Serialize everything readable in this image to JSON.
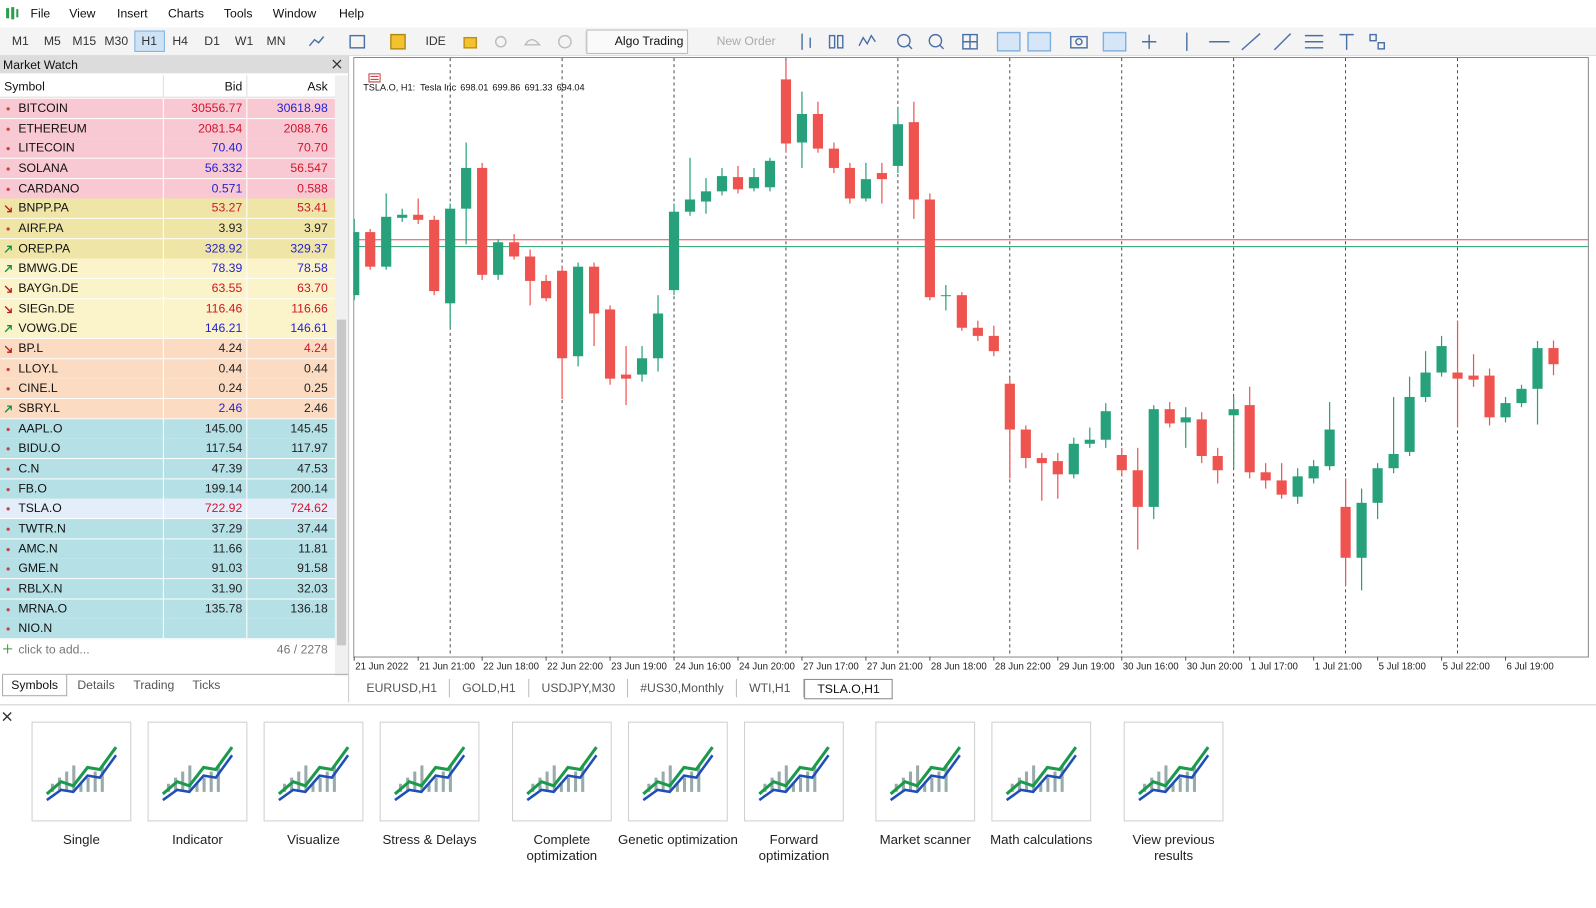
{
  "menu": [
    "File",
    "View",
    "Insert",
    "Charts",
    "Tools",
    "Window",
    "Help"
  ],
  "toolbar": {
    "timeframes": [
      {
        "label": "M1"
      },
      {
        "label": "M5"
      },
      {
        "label": "M15"
      },
      {
        "label": "M30"
      },
      {
        "label": "H1",
        "active": true
      },
      {
        "label": "H4"
      },
      {
        "label": "D1"
      },
      {
        "label": "W1"
      },
      {
        "label": "MN"
      }
    ],
    "ide": "IDE",
    "algo_trading": "Algo Trading",
    "new_order": "New Order"
  },
  "market_watch": {
    "title": "Market Watch",
    "columns": [
      "Symbol",
      "Bid",
      "Ask"
    ],
    "rows": [
      {
        "symbol": "BITCOIN",
        "bid": "30556.77",
        "ask": "30618.98",
        "color": "#f9c9d3",
        "trend": "none",
        "bid_color": "red",
        "ask_color": "blue"
      },
      {
        "symbol": "ETHEREUM",
        "bid": "2081.54",
        "ask": "2088.76",
        "color": "#f9c9d3",
        "trend": "none",
        "bid_color": "red",
        "ask_color": "red"
      },
      {
        "symbol": "LITECOIN",
        "bid": "70.40",
        "ask": "70.70",
        "color": "#f9c9d3",
        "trend": "none",
        "bid_color": "blue",
        "ask_color": "red"
      },
      {
        "symbol": "SOLANA",
        "bid": "56.332",
        "ask": "56.547",
        "color": "#f9c9d3",
        "trend": "none",
        "bid_color": "blue",
        "ask_color": "red"
      },
      {
        "symbol": "CARDANO",
        "bid": "0.571",
        "ask": "0.588",
        "color": "#f9c9d3",
        "trend": "none",
        "bid_color": "blue",
        "ask_color": "red"
      },
      {
        "symbol": "BNPP.PA",
        "bid": "53.27",
        "ask": "53.41",
        "color": "#efe5a6",
        "trend": "down",
        "bid_color": "red",
        "ask_color": "red"
      },
      {
        "symbol": "AIRF.PA",
        "bid": "3.93",
        "ask": "3.97",
        "color": "#efe5a6",
        "trend": "none",
        "bid_color": "black",
        "ask_color": "black"
      },
      {
        "symbol": "OREP.PA",
        "bid": "328.92",
        "ask": "329.37",
        "color": "#efe5a6",
        "trend": "up",
        "bid_color": "blue",
        "ask_color": "blue"
      },
      {
        "symbol": "BMWG.DE",
        "bid": "78.39",
        "ask": "78.58",
        "color": "#fbf3c9",
        "trend": "up",
        "bid_color": "blue",
        "ask_color": "blue"
      },
      {
        "symbol": "BAYGn.DE",
        "bid": "63.55",
        "ask": "63.70",
        "color": "#fbf3c9",
        "trend": "down",
        "bid_color": "red",
        "ask_color": "red"
      },
      {
        "symbol": "SIEGn.DE",
        "bid": "116.46",
        "ask": "116.66",
        "color": "#fbf3c9",
        "trend": "down",
        "bid_color": "red",
        "ask_color": "red"
      },
      {
        "symbol": "VOWG.DE",
        "bid": "146.21",
        "ask": "146.61",
        "color": "#fbf3c9",
        "trend": "up",
        "bid_color": "blue",
        "ask_color": "blue"
      },
      {
        "symbol": "BP.L",
        "bid": "4.24",
        "ask": "4.24",
        "color": "#fbdcc2",
        "trend": "down",
        "bid_color": "black",
        "ask_color": "red"
      },
      {
        "symbol": "LLOY.L",
        "bid": "0.44",
        "ask": "0.44",
        "color": "#fbdcc2",
        "trend": "none",
        "bid_color": "black",
        "ask_color": "black"
      },
      {
        "symbol": "CINE.L",
        "bid": "0.24",
        "ask": "0.25",
        "color": "#fbdcc2",
        "trend": "none",
        "bid_color": "black",
        "ask_color": "black"
      },
      {
        "symbol": "SBRY.L",
        "bid": "2.46",
        "ask": "2.46",
        "color": "#fbdcc2",
        "trend": "up",
        "bid_color": "blue",
        "ask_color": "black"
      },
      {
        "symbol": "AAPL.O",
        "bid": "145.00",
        "ask": "145.45",
        "color": "#b4e0e6",
        "trend": "none",
        "bid_color": "black",
        "ask_color": "black"
      },
      {
        "symbol": "BIDU.O",
        "bid": "117.54",
        "ask": "117.97",
        "color": "#b4e0e6",
        "trend": "none",
        "bid_color": "black",
        "ask_color": "black"
      },
      {
        "symbol": "C.N",
        "bid": "47.39",
        "ask": "47.53",
        "color": "#b4e0e6",
        "trend": "none",
        "bid_color": "black",
        "ask_color": "black"
      },
      {
        "symbol": "FB.O",
        "bid": "199.14",
        "ask": "200.14",
        "color": "#b4e0e6",
        "trend": "none",
        "bid_color": "black",
        "ask_color": "black"
      },
      {
        "symbol": "TSLA.O",
        "bid": "722.92",
        "ask": "724.62",
        "color": "#e3eefa",
        "trend": "none",
        "bid_color": "red",
        "ask_color": "red",
        "selected": true
      },
      {
        "symbol": "TWTR.N",
        "bid": "37.29",
        "ask": "37.44",
        "color": "#b4e0e6",
        "trend": "none",
        "bid_color": "black",
        "ask_color": "black"
      },
      {
        "symbol": "AMC.N",
        "bid": "11.66",
        "ask": "11.81",
        "color": "#b4e0e6",
        "trend": "none",
        "bid_color": "black",
        "ask_color": "black"
      },
      {
        "symbol": "GME.N",
        "bid": "91.03",
        "ask": "91.58",
        "color": "#b4e0e6",
        "trend": "none",
        "bid_color": "black",
        "ask_color": "black"
      },
      {
        "symbol": "RBLX.N",
        "bid": "31.90",
        "ask": "32.03",
        "color": "#b4e0e6",
        "trend": "none",
        "bid_color": "black",
        "ask_color": "black"
      },
      {
        "symbol": "MRNA.O",
        "bid": "135.78",
        "ask": "136.18",
        "color": "#b4e0e6",
        "trend": "none",
        "bid_color": "black",
        "ask_color": "black"
      },
      {
        "symbol": "NIO.N",
        "color": "#b4e0e6",
        "trend": "none"
      }
    ],
    "add": "click to add...",
    "count": "46 / 2278",
    "tabs": [
      {
        "label": "Symbols",
        "active": true
      },
      {
        "label": "Details"
      },
      {
        "label": "Trading"
      },
      {
        "label": "Ticks"
      }
    ]
  },
  "chart_data": {
    "type": "candlestick",
    "title": "TSLA.O, H1:  Tesla Inc",
    "categories": [
      "21 Jun 2022",
      null,
      null,
      null,
      "21 Jun 21:00",
      null,
      null,
      null,
      "22 Jun 18:00",
      null,
      null,
      null,
      "22 Jun 22:00",
      null,
      null,
      null,
      "23 Jun 19:00",
      null,
      null,
      null,
      "24 Jun 16:00",
      null,
      null,
      null,
      "24 Jun 20:00",
      null,
      null,
      null,
      "27 Jun 17:00",
      null,
      null,
      null,
      "27 Jun 21:00",
      null,
      null,
      null,
      "28 Jun 18:00",
      null,
      null,
      null,
      "28 Jun 22:00",
      null,
      null,
      null,
      "29 Jun 19:00",
      null,
      null,
      null,
      "30 Jun 16:00",
      null,
      null,
      null,
      "30 Jun 20:00",
      null,
      null,
      null,
      "1 Jul 17:00",
      null,
      null,
      null,
      "1 Jul 21:00",
      null,
      null,
      null,
      "5 Jul 18:00",
      null,
      null,
      null,
      "5 Jul 22:00",
      null,
      null,
      null,
      "6 Jul 19:00",
      null,
      null,
      null
    ],
    "open": [
      711,
      726.5,
      718,
      730,
      730.75,
      729.5,
      709,
      732.25,
      742.25,
      716,
      724,
      720.5,
      714.5,
      717,
      696,
      718,
      707.5,
      691.5,
      691.5,
      695.5,
      712.25,
      731.5,
      734,
      736.5,
      740,
      737.25,
      737.5,
      764,
      748.5,
      755.5,
      747,
      742.25,
      734.75,
      741,
      742.75,
      753.5,
      734.5,
      711,
      711,
      703,
      701,
      689.25,
      678,
      671,
      670.25,
      667,
      674.5,
      675.5,
      671.75,
      668,
      659,
      683,
      679.75,
      680.5,
      671.5,
      681.5,
      684,
      667.5,
      665.5,
      661.5,
      666,
      669,
      659,
      646.5,
      660,
      668.5,
      672.5,
      686,
      692,
      692,
      691.25,
      691.25,
      681,
      684.5,
      688,
      698.01
    ],
    "high": [
      729.75,
      727.25,
      736,
      732.25,
      734.75,
      730.5,
      733.5,
      748.5,
      743.5,
      724.75,
      726,
      722.25,
      716,
      718,
      719,
      719,
      708.5,
      698.5,
      698.5,
      711,
      733.5,
      744.75,
      739.75,
      742.25,
      742.75,
      742.25,
      744.75,
      768.5,
      761,
      758.5,
      748.5,
      743.5,
      743.5,
      743.5,
      757.25,
      758.5,
      736,
      713.5,
      711.75,
      704.75,
      703.5,
      690.5,
      679,
      672.25,
      672.25,
      676,
      678.5,
      684.5,
      673.5,
      673.5,
      684,
      684.75,
      683.5,
      682.25,
      673.5,
      686,
      688.5,
      669.75,
      669.75,
      668.5,
      670.5,
      684.75,
      666,
      663.5,
      669.75,
      686,
      691,
      697.25,
      701,
      704.75,
      696.5,
      693,
      686,
      689,
      699.75,
      699.86
    ],
    "low": [
      709.75,
      717.25,
      717.25,
      729,
      728.5,
      711,
      703,
      723.5,
      714.75,
      714.75,
      719.75,
      708.5,
      709.5,
      685.5,
      693.5,
      698.5,
      689,
      684,
      689.75,
      692.25,
      711,
      730.5,
      731,
      735.5,
      736,
      736.5,
      736.5,
      746,
      742.25,
      746,
      741,
      733.5,
      734,
      733.5,
      741,
      729.75,
      709.75,
      707.25,
      702.25,
      699.75,
      696,
      666,
      668.5,
      660.5,
      661,
      666,
      673.5,
      673.5,
      666.5,
      648.5,
      656,
      678.5,
      673.5,
      669.75,
      664.75,
      668.5,
      666,
      663.5,
      661,
      659.75,
      664.75,
      668,
      639.75,
      638.5,
      656,
      667.25,
      671.5,
      684.75,
      691,
      678.5,
      688.5,
      679,
      679.75,
      683.5,
      679.25,
      691.33
    ],
    "close": [
      726.5,
      718,
      730.25,
      730.75,
      729.5,
      712,
      732.25,
      742.25,
      716,
      724,
      720.5,
      714.5,
      710.25,
      695.5,
      718,
      706.5,
      690.5,
      690.5,
      695.5,
      706.5,
      731.5,
      734.5,
      736.5,
      740.25,
      737,
      740,
      744,
      748.25,
      755.5,
      747,
      742.25,
      734.75,
      739.5,
      739.5,
      753,
      734.5,
      710.5,
      711,
      703,
      701,
      697.25,
      678,
      671,
      669.75,
      667,
      674.5,
      675.5,
      682.5,
      668,
      659,
      683,
      679.5,
      681,
      671.5,
      668,
      683,
      667.5,
      665.5,
      662,
      666.5,
      669,
      678,
      646.5,
      660,
      668.5,
      672,
      686,
      692,
      698.5,
      690.5,
      690.25,
      681,
      684.5,
      688,
      698,
      694.04
    ],
    "up_color": "#26a17b",
    "down_color": "#ef5350",
    "ylim": [
      622.25,
      769.25
    ]
  },
  "chart_tabs": [
    {
      "label": "EURUSD,H1"
    },
    {
      "label": "GOLD,H1"
    },
    {
      "label": "USDJPY,M30"
    },
    {
      "label": "#US30,Monthly"
    },
    {
      "label": "WTI,H1"
    },
    {
      "label": "TSLA.O,H1",
      "active": true
    }
  ],
  "tester": {
    "tiles": [
      "Single",
      "Indicator",
      "Visualize",
      "Stress & Delays",
      "Complete optimization",
      "Genetic optimization",
      "Forward optimization",
      "Market scanner",
      "Math calculations",
      "View previous results"
    ]
  }
}
